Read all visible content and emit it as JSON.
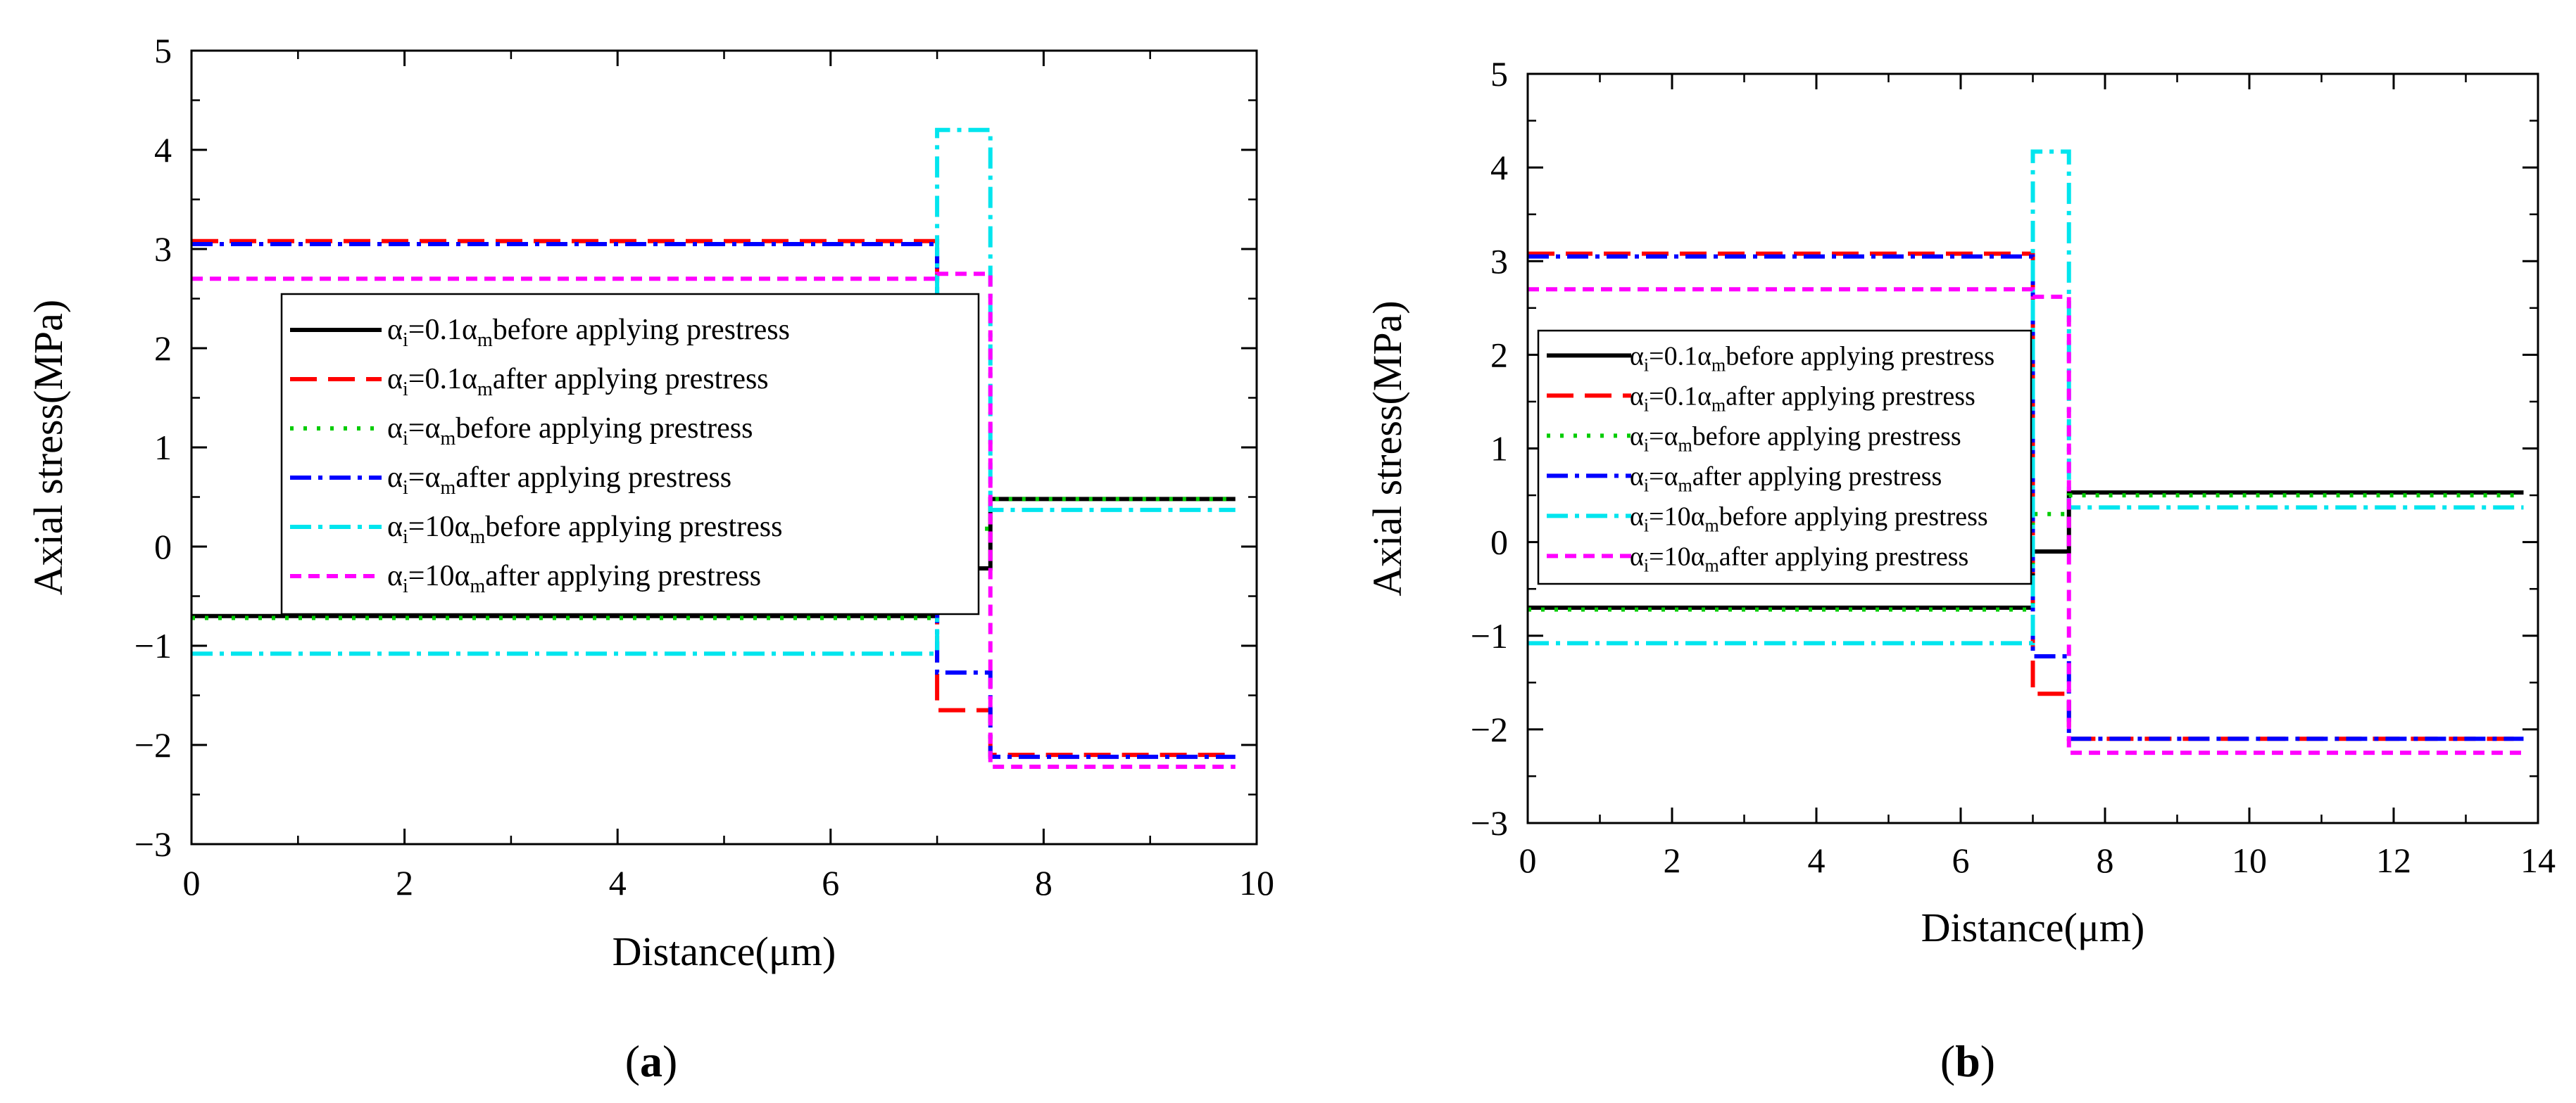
{
  "panels": {
    "a": {
      "label_prefix": "(",
      "label_letter": "a",
      "label_suffix": ")"
    },
    "b": {
      "label_prefix": "(",
      "label_letter": "b",
      "label_suffix": ")"
    }
  },
  "legend_common": {
    "alpha": "α",
    "sub_i": "i",
    "sub_m": "m",
    "eq": "=",
    "coef_01": "0.1",
    "coef_1": "",
    "coef_10": "10",
    "before": "before applying prestress",
    "after": "after applying prestress"
  },
  "chart_data": [
    {
      "type": "line",
      "panel": "a",
      "title": "",
      "xlabel": "Distance(μm)",
      "ylabel": "Axial stress(MPa)",
      "xlim": [
        0,
        10
      ],
      "ylim": [
        -3,
        5
      ],
      "xticks": [
        0,
        2,
        4,
        6,
        8,
        10
      ],
      "yticks": [
        5,
        4,
        3,
        2,
        1,
        0,
        -1,
        -2,
        -3
      ],
      "ytick_labels": [
        "5",
        "4",
        "3",
        "2",
        "1",
        "0",
        "−1",
        "−2",
        "−3"
      ],
      "grid": false,
      "legend_position": "center-left",
      "series": [
        {
          "name": "αi=0.1αm before applying prestress",
          "coef": "0.1",
          "state": "before",
          "color": "#000000",
          "dash": "solid",
          "x": [
            0,
            7.0,
            7.0,
            7.5,
            7.5,
            9.8
          ],
          "y": [
            -0.7,
            -0.7,
            -0.22,
            -0.22,
            0.48,
            0.48
          ]
        },
        {
          "name": "αi=0.1αm after applying prestress",
          "coef": "0.1",
          "state": "after",
          "color": "#ff0000",
          "dash": "long-dash",
          "x": [
            0,
            7.0,
            7.0,
            7.5,
            7.5,
            9.8
          ],
          "y": [
            3.08,
            3.08,
            -1.65,
            -1.65,
            -2.1,
            -2.1
          ]
        },
        {
          "name": "αi=αm before applying prestress",
          "coef": "1",
          "state": "before",
          "color": "#00cc00",
          "dash": "dot",
          "x": [
            0,
            7.0,
            7.0,
            7.5,
            7.5,
            9.8
          ],
          "y": [
            -0.72,
            -0.72,
            0.18,
            0.18,
            0.48,
            0.48
          ]
        },
        {
          "name": "αi=αm after applying prestress",
          "coef": "1",
          "state": "after",
          "color": "#0000ff",
          "dash": "dash-dot",
          "x": [
            0,
            7.0,
            7.0,
            7.5,
            7.5,
            9.8
          ],
          "y": [
            3.05,
            3.05,
            -1.27,
            -1.27,
            -2.12,
            -2.12
          ]
        },
        {
          "name": "αi=10αm before applying prestress",
          "coef": "10",
          "state": "before",
          "color": "#00e5ee",
          "dash": "dash-dot",
          "x": [
            0,
            7.0,
            7.0,
            7.5,
            7.5,
            9.8
          ],
          "y": [
            -1.08,
            -1.08,
            4.2,
            4.2,
            0.37,
            0.37
          ]
        },
        {
          "name": "αi=10αm after applying prestress",
          "coef": "10",
          "state": "after",
          "color": "#ff00ff",
          "dash": "short-dash",
          "x": [
            0,
            7.0,
            7.0,
            7.5,
            7.5,
            9.8
          ],
          "y": [
            2.7,
            2.7,
            2.75,
            2.75,
            -2.22,
            -2.22
          ]
        }
      ]
    },
    {
      "type": "line",
      "panel": "b",
      "title": "",
      "xlabel": "Distance(μm)",
      "ylabel": "Axial stress(MPa)",
      "xlim": [
        0,
        14
      ],
      "ylim": [
        -3,
        5
      ],
      "xticks": [
        0,
        2,
        4,
        6,
        8,
        10,
        12,
        14
      ],
      "yticks": [
        5,
        4,
        3,
        2,
        1,
        0,
        -1,
        -2,
        -3
      ],
      "ytick_labels": [
        "5",
        "4",
        "3",
        "2",
        "1",
        "0",
        "−1",
        "−2",
        "−3"
      ],
      "grid": false,
      "legend_position": "center-left",
      "series": [
        {
          "name": "αi=0.1αm before applying prestress",
          "coef": "0.1",
          "state": "before",
          "color": "#000000",
          "dash": "solid",
          "x": [
            0,
            7.0,
            7.0,
            7.5,
            7.5,
            13.8
          ],
          "y": [
            -0.7,
            -0.7,
            -0.1,
            -0.1,
            0.53,
            0.53
          ]
        },
        {
          "name": "αi=0.1αm after applying prestress",
          "coef": "0.1",
          "state": "after",
          "color": "#ff0000",
          "dash": "long-dash",
          "x": [
            0,
            7.0,
            7.0,
            7.5,
            7.5,
            13.8
          ],
          "y": [
            3.08,
            3.08,
            -1.62,
            -1.62,
            -2.1,
            -2.1
          ]
        },
        {
          "name": "αi=αm before applying prestress",
          "coef": "1",
          "state": "before",
          "color": "#00cc00",
          "dash": "dot",
          "x": [
            0,
            7.0,
            7.0,
            7.5,
            7.5,
            13.8
          ],
          "y": [
            -0.72,
            -0.72,
            0.3,
            0.3,
            0.5,
            0.5
          ]
        },
        {
          "name": "αi=αm after applying prestress",
          "coef": "1",
          "state": "after",
          "color": "#0000ff",
          "dash": "dash-dot",
          "x": [
            0,
            7.0,
            7.0,
            7.5,
            7.5,
            13.8
          ],
          "y": [
            3.05,
            3.05,
            -1.22,
            -1.22,
            -2.1,
            -2.1
          ]
        },
        {
          "name": "αi=10αm before applying prestress",
          "coef": "10",
          "state": "before",
          "color": "#00e5ee",
          "dash": "dash-dot",
          "x": [
            0,
            7.0,
            7.0,
            7.5,
            7.5,
            13.8
          ],
          "y": [
            -1.08,
            -1.08,
            4.17,
            4.17,
            0.37,
            0.37
          ]
        },
        {
          "name": "αi=10αm after applying prestress",
          "coef": "10",
          "state": "after",
          "color": "#ff00ff",
          "dash": "short-dash",
          "x": [
            0,
            7.0,
            7.0,
            7.5,
            7.5,
            13.8
          ],
          "y": [
            2.7,
            2.7,
            2.62,
            2.62,
            -2.25,
            -2.25
          ]
        }
      ]
    }
  ]
}
